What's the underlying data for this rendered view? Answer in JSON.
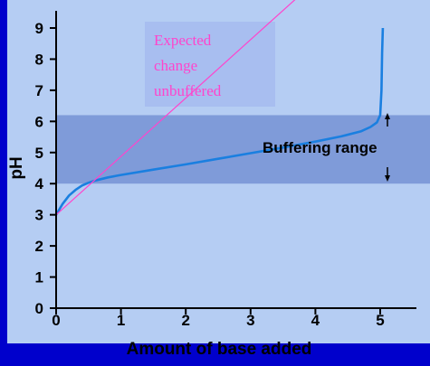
{
  "chart_data": {
    "type": "line",
    "title": "",
    "xlabel": "Amount of base added",
    "ylabel": "pH",
    "xlim": [
      0,
      5.8
    ],
    "ylim": [
      0,
      9.6
    ],
    "x_ticks": [
      0,
      1,
      2,
      3,
      4,
      5
    ],
    "y_ticks": [
      0,
      1,
      2,
      3,
      4,
      5,
      6,
      7,
      8,
      9
    ],
    "grid": false,
    "series": [
      {
        "color": "#1a7fe0",
        "x": [
          0,
          0.1,
          0.2,
          0.3,
          0.4,
          0.5,
          0.6,
          0.8,
          1.0,
          1.5,
          2.0,
          2.5,
          3.0,
          3.5,
          4.0,
          4.4,
          4.7,
          4.85,
          4.95,
          5.0,
          5.02,
          5.03,
          5.04
        ],
        "y": [
          3.0,
          3.35,
          3.62,
          3.8,
          3.94,
          4.03,
          4.1,
          4.2,
          4.28,
          4.45,
          4.62,
          4.8,
          4.98,
          5.16,
          5.35,
          5.52,
          5.68,
          5.82,
          5.97,
          6.2,
          7.0,
          8.2,
          9.0
        ]
      },
      {
        "color": "#ff44cc",
        "x": [
          0,
          4.0
        ],
        "y": [
          3.0,
          10.5
        ]
      }
    ],
    "bands": [
      {
        "y_range": [
          4.0,
          6.2
        ],
        "color": "#7f9bd9"
      }
    ],
    "annotations": {
      "expected_lines": [
        "Expected",
        "change",
        "unbuffered"
      ],
      "buffering": "Buffering range"
    }
  },
  "colors": {
    "frame": "#0000cc",
    "plot_bg": "#b5cdf3",
    "band": "#7f9bd9",
    "annotation_box": "#a6bbee",
    "axis": "#000000"
  }
}
